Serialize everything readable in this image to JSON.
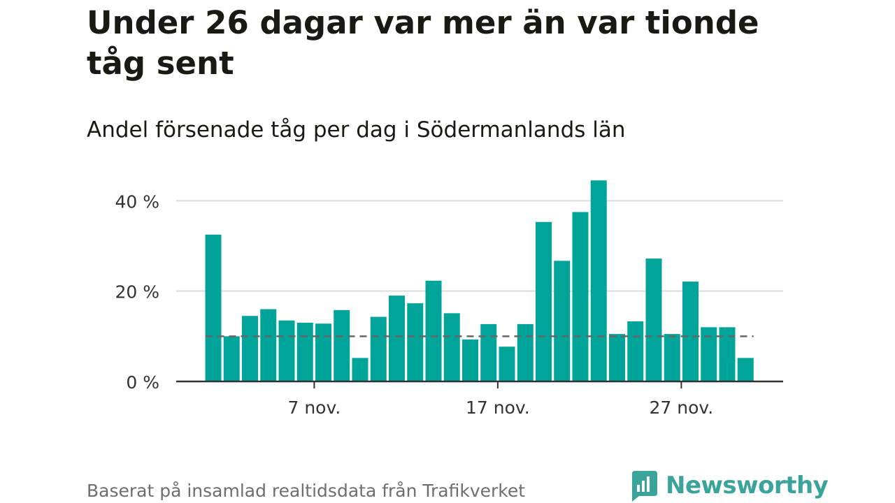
{
  "title": "Under 26 dagar var mer än var tionde tåg sent",
  "subtitle": "Andel försenade tåg per dag i Södermanlands län",
  "footer": "Baserat på insamlad realtidsdata från Trafikverket",
  "logo": {
    "text": "Newsworthy",
    "icon": "bar-chart-speech-bubble-icon"
  },
  "colors": {
    "bar": "#00a499",
    "grid": "#dddddd",
    "axis": "#333333",
    "reference": "#666666",
    "logo": "#3aa49a"
  },
  "chart_data": {
    "type": "bar",
    "x_label_days": [
      7,
      17,
      27
    ],
    "x_tick_labels": [
      "7 nov.",
      "17 nov.",
      "27 nov."
    ],
    "y_ticks": [
      0,
      20,
      40
    ],
    "y_tick_labels": [
      "0 %",
      "20 %",
      "40 %"
    ],
    "ylim": [
      0,
      45
    ],
    "grid": true,
    "reference_line": 10,
    "days": [
      1,
      2,
      3,
      4,
      5,
      6,
      7,
      8,
      9,
      10,
      11,
      12,
      13,
      14,
      15,
      16,
      17,
      18,
      19,
      20,
      21,
      22,
      23,
      24,
      25,
      26,
      27,
      28,
      29,
      30
    ],
    "values": [
      32.5,
      10,
      14.5,
      16,
      13.5,
      13,
      12.8,
      15.8,
      5.2,
      14.3,
      19,
      17.3,
      22.3,
      15.1,
      9.3,
      12.7,
      7.7,
      12.7,
      35.3,
      26.7,
      37.5,
      44.5,
      10.5,
      13.3,
      27.2,
      10.5,
      22.1,
      12,
      12,
      5.2
    ]
  }
}
